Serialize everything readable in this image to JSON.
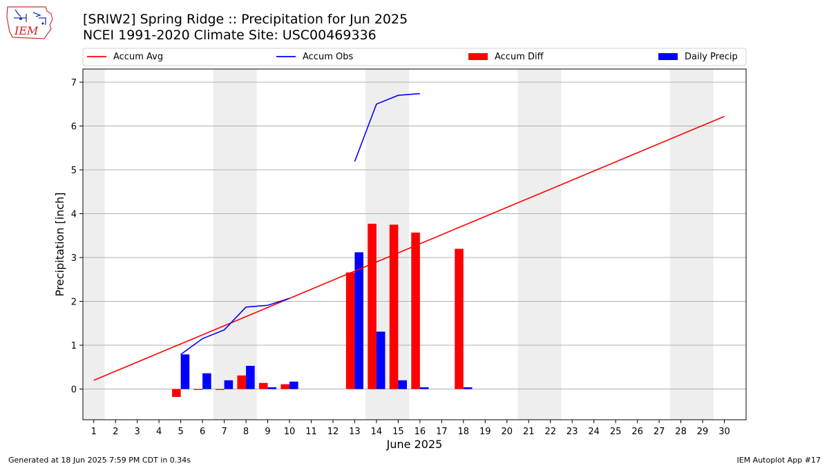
{
  "logo": {
    "text": "IEM"
  },
  "title_line1": "[SRIW2] Spring Ridge :: Precipitation for Jun 2025",
  "title_line2": "NCEI 1991-2020 Climate Site: USC00469336",
  "footer": {
    "left": "Generated at 18 Jun 2025 7:59 PM CDT in 0.34s",
    "right": "IEM Autoplot App #17"
  },
  "colors": {
    "avg": "#ff0000",
    "obs": "#0000ff",
    "diff": "#ff0000",
    "daily": "#0000ff",
    "weekend": "#eeeeee",
    "grid": "#b0b0b0"
  },
  "chart_data": {
    "type": "bar",
    "xlabel": "June 2025",
    "ylabel": "Precipitation [inch]",
    "xlim": [
      0.5,
      31
    ],
    "ylim": [
      -0.7,
      7.3
    ],
    "grid": true,
    "legend_position": "top",
    "x_ticks": [
      "1",
      "2",
      "3",
      "4",
      "5",
      "6",
      "7",
      "8",
      "9",
      "10",
      "11",
      "12",
      "13",
      "14",
      "15",
      "16",
      "17",
      "18",
      "19",
      "20",
      "21",
      "22",
      "23",
      "24",
      "25",
      "26",
      "27",
      "28",
      "29",
      "30"
    ],
    "y_ticks": [
      0,
      1,
      2,
      3,
      4,
      5,
      6,
      7
    ],
    "weekend_bands": [
      [
        0.5,
        1.5
      ],
      [
        6.5,
        8.5
      ],
      [
        13.5,
        15.5
      ],
      [
        20.5,
        22.5
      ],
      [
        27.5,
        29.5
      ]
    ],
    "legend": [
      "Accum Avg",
      "Accum Obs",
      "Accum Diff",
      "Daily Precip"
    ],
    "accum_avg": {
      "name": "Accum Avg",
      "x": [
        1,
        30
      ],
      "y": [
        0.2,
        6.22
      ]
    },
    "accum_obs": {
      "name": "Accum Obs",
      "segments": [
        {
          "x": [
            5,
            6,
            7,
            8,
            9,
            10
          ],
          "y": [
            0.79,
            1.15,
            1.35,
            1.87,
            1.91,
            2.07
          ]
        },
        {
          "x": [
            13,
            14,
            15,
            16
          ],
          "y": [
            5.19,
            6.5,
            6.7,
            6.74
          ]
        }
      ]
    },
    "accum_diff": {
      "name": "Accum Diff",
      "x": [
        5,
        6,
        7,
        8,
        9,
        10,
        13,
        14,
        15,
        16,
        18
      ],
      "values": [
        -0.18,
        -0.02,
        -0.02,
        0.31,
        0.14,
        0.11,
        2.66,
        3.77,
        3.75,
        3.57,
        3.2
      ]
    },
    "daily_precip": {
      "name": "Daily Precip",
      "x": [
        5,
        6,
        7,
        8,
        9,
        10,
        13,
        14,
        15,
        16,
        18
      ],
      "values": [
        0.79,
        0.36,
        0.2,
        0.53,
        0.04,
        0.17,
        3.12,
        1.31,
        0.2,
        0.04,
        0.04
      ]
    }
  }
}
